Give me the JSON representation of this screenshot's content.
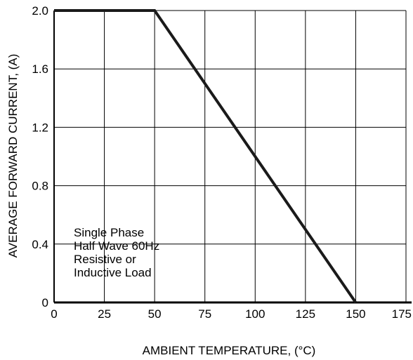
{
  "chart_data": {
    "type": "line",
    "title": "",
    "xlabel": "AMBIENT TEMPERATURE, (°C)",
    "ylabel": "AVERAGE FORWARD CURRENT, (A)",
    "xlim": [
      0,
      175
    ],
    "ylim": [
      0,
      2.0
    ],
    "x_ticks": [
      0,
      25,
      50,
      75,
      100,
      125,
      150,
      175
    ],
    "y_ticks": [
      0,
      0.4,
      0.8,
      1.2,
      1.6,
      2.0
    ],
    "x_tick_labels": [
      "0",
      "25",
      "50",
      "75",
      "100",
      "125",
      "150",
      "175"
    ],
    "y_tick_labels": [
      "0",
      "0.4",
      "0.8",
      "1.2",
      "1.6",
      "2.0"
    ],
    "grid": true,
    "series": [
      {
        "x": [
          0,
          50,
          150
        ],
        "y": [
          2.0,
          2.0,
          0
        ]
      }
    ],
    "annotation_lines": [
      "Single Phase",
      "Half Wave 60Hz",
      "Resistive or",
      "Inductive Load"
    ],
    "line_color": "#1a1a1a",
    "grid_color": "#000000"
  }
}
